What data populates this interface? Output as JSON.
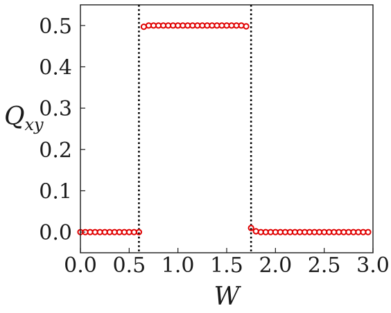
{
  "chart_data": {
    "type": "scatter",
    "xlabel": "W",
    "ylabel_main": "Q",
    "ylabel_sub": "xy",
    "xlim": [
      0.0,
      3.0
    ],
    "ylim": [
      -0.05,
      0.55
    ],
    "x_ticks": [
      0.0,
      0.5,
      1.0,
      1.5,
      2.0,
      2.5,
      3.0
    ],
    "x_tick_labels": [
      "0.0",
      "0.5",
      "1.0",
      "1.5",
      "2.0",
      "2.5",
      "3.0"
    ],
    "y_ticks": [
      0.0,
      0.1,
      0.2,
      0.3,
      0.4,
      0.5
    ],
    "y_tick_labels": [
      "0.0",
      "0.1",
      "0.2",
      "0.3",
      "0.4",
      "0.5"
    ],
    "vlines": [
      0.6,
      1.75
    ],
    "grid": false,
    "legend": "none",
    "series": [
      {
        "marker": "open-circle",
        "color": "#e00000",
        "x": [
          0.0,
          0.05,
          0.1,
          0.15,
          0.2,
          0.25,
          0.3,
          0.35,
          0.4,
          0.45,
          0.5,
          0.55,
          0.6,
          0.65,
          0.7,
          0.75,
          0.8,
          0.85,
          0.9,
          0.95,
          1.0,
          1.05,
          1.1,
          1.15,
          1.2,
          1.25,
          1.3,
          1.35,
          1.4,
          1.45,
          1.5,
          1.55,
          1.6,
          1.65,
          1.7,
          1.75,
          1.8,
          1.85,
          1.9,
          1.95,
          2.0,
          2.05,
          2.1,
          2.15,
          2.2,
          2.25,
          2.3,
          2.35,
          2.4,
          2.45,
          2.5,
          2.55,
          2.6,
          2.65,
          2.7,
          2.75,
          2.8,
          2.85,
          2.9,
          2.95
        ],
        "y": [
          0,
          0,
          0,
          0,
          0,
          0,
          0,
          0,
          0,
          0,
          0,
          0,
          0,
          0.497,
          0.5,
          0.5,
          0.5,
          0.5,
          0.5,
          0.5,
          0.5,
          0.5,
          0.5,
          0.5,
          0.5,
          0.5,
          0.5,
          0.5,
          0.5,
          0.5,
          0.5,
          0.5,
          0.5,
          0.5,
          0.498,
          0.01,
          0.002,
          0,
          0,
          0,
          0,
          0,
          0,
          0,
          0,
          0,
          0,
          0,
          0,
          0,
          0,
          0,
          0,
          0,
          0,
          0,
          0,
          0,
          0,
          0
        ]
      }
    ]
  }
}
